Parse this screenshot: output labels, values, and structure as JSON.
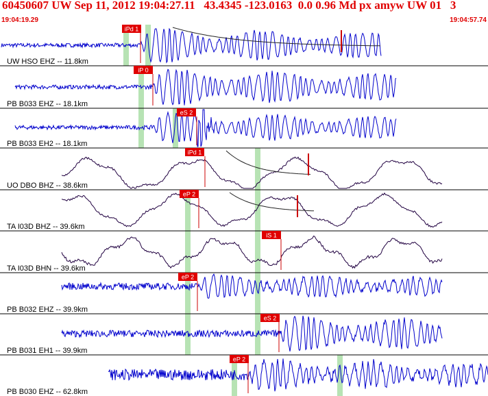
{
  "header": {
    "title": "60450607 UW Sep 11, 2012 19:04:27.11   43.4345 -123.0163  0.0 0.96 Md px amyw UW 01   3",
    "start_time": "19:04:19.29",
    "end_time": "19:04:57.74"
  },
  "colors": {
    "header_text": "#e00000",
    "pick_box": "#e00000",
    "pick_text": "#ffffff",
    "pick_line": "#cc0000",
    "window_band": "#b7e3b4",
    "trace_blue": "#0000cc",
    "trace_dark": "#200040",
    "decay_curve": "#222222",
    "separator": "#000000"
  },
  "traces": [
    {
      "label": "UW HSO EHZ -- 11.8km",
      "color": "blue",
      "pick": "iPd 1"
    },
    {
      "label": "PB B033 EHZ -- 18.1km",
      "color": "blue",
      "pick": "iP 0"
    },
    {
      "label": "PB B033 EH2 -- 18.1km",
      "color": "blue",
      "pick": "eS 2"
    },
    {
      "label": "UO DBO BHZ -- 38.6km",
      "color": "dark",
      "pick": "iPd 1"
    },
    {
      "label": "TA I03D BHZ -- 39.6km",
      "color": "dark",
      "pick": "eP 2"
    },
    {
      "label": "TA I03D BHN -- 39.6km",
      "color": "dark",
      "pick": "iS 1"
    },
    {
      "label": "PB B032 EHZ -- 39.9km",
      "color": "blue",
      "pick": "eP 2"
    },
    {
      "label": "PB B031 EH1 -- 39.9km",
      "color": "blue",
      "pick": "eS 2"
    },
    {
      "label": "PB B030 EHZ -- 62.8km",
      "color": "blue",
      "pick": "eP 2"
    }
  ]
}
